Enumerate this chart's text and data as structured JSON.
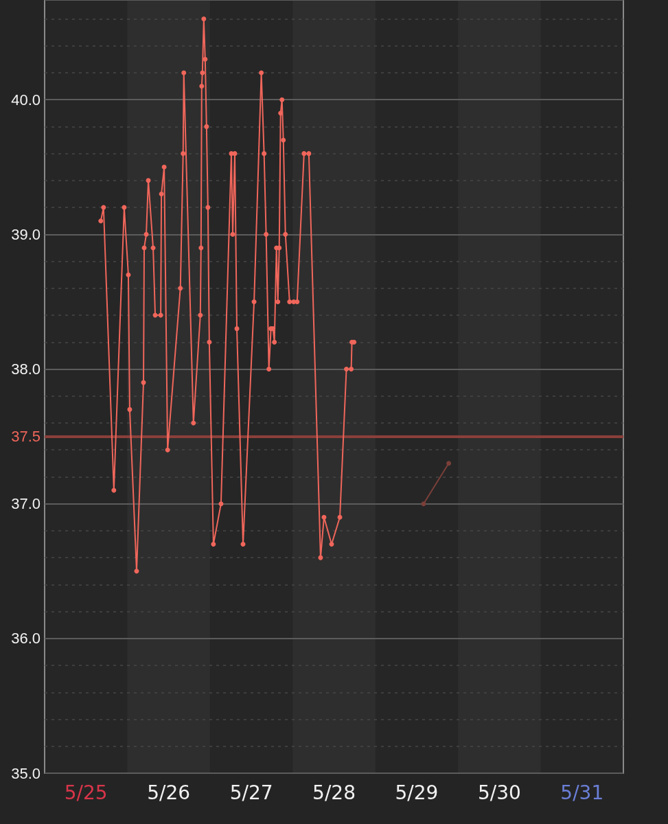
{
  "chart_data": {
    "type": "line",
    "x": [
      "--05-25T16:18",
      "--05-25T17:06",
      "--05-25T20:06",
      "--05-25T23:06",
      "--05-26T00:18",
      "--05-26T00:42",
      "--05-26T02:42",
      "--05-26T04:42",
      "--05-26T04:54",
      "--05-26T05:30",
      "--05-26T06:06",
      "--05-26T07:30",
      "--05-26T08:06",
      "--05-26T09:42",
      "--05-26T09:54",
      "--05-26T10:42",
      "--05-26T11:42",
      "--05-26T15:24",
      "--05-26T16:12",
      "--05-26T16:24",
      "--05-26T19:12",
      "--05-26T21:12",
      "--05-26T21:24",
      "--05-26T21:36",
      "--05-26T21:48",
      "--05-26T22:12",
      "--05-26T22:36",
      "--05-26T23:00",
      "--05-26T23:24",
      "--05-26T23:48",
      "--05-27T01:00",
      "--05-27T03:12",
      "--05-27T06:12",
      "--05-27T06:36",
      "--05-27T07:12",
      "--05-27T07:48",
      "--05-27T09:36",
      "--05-27T12:48",
      "--05-27T14:54",
      "--05-27T15:42",
      "--05-27T16:18",
      "--05-27T17:06",
      "--05-27T17:42",
      "--05-27T18:18",
      "--05-27T18:42",
      "--05-27T19:18",
      "--05-27T19:42",
      "--05-27T20:06",
      "--05-27T20:30",
      "--05-27T20:54",
      "--05-27T21:18",
      "--05-27T21:54",
      "--05-27T23:06",
      "--05-28T00:18",
      "--05-28T01:18",
      "--05-28T03:18",
      "--05-28T04:42",
      "--05-28T08:06",
      "--05-28T09:06",
      "--05-28T11:18",
      "--05-28T13:42",
      "--05-28T15:36",
      "--05-28T17:00",
      "--05-28T17:12",
      "--05-28T17:48"
    ],
    "series": [
      {
        "color": "#f0665b",
        "values": [
          39.1,
          39.2,
          37.1,
          39.2,
          38.7,
          37.7,
          36.5,
          37.9,
          38.9,
          39.0,
          39.4,
          38.9,
          38.4,
          38.4,
          39.3,
          39.5,
          37.4,
          38.6,
          39.6,
          40.2,
          37.6,
          38.4,
          38.9,
          40.1,
          40.2,
          40.6,
          40.3,
          39.8,
          39.2,
          38.2,
          36.7,
          37.0,
          39.6,
          39.0,
          39.6,
          38.3,
          36.7,
          38.5,
          40.2,
          39.6,
          39.0,
          38.0,
          38.3,
          38.3,
          38.2,
          38.9,
          38.5,
          38.9,
          39.9,
          40.0,
          39.7,
          39.0,
          38.5,
          38.5,
          38.5,
          39.6,
          39.6,
          36.6,
          36.9,
          36.7,
          36.9,
          38.0,
          38.0,
          38.2,
          38.2
        ]
      },
      {
        "color": "#7a3f39",
        "x": [
          "--05-29T14:00",
          "--05-29T21:18"
        ],
        "values": [
          37.0,
          37.3
        ]
      }
    ],
    "xlim": [
      "--05-25T00:00",
      "--06-01T00:00"
    ],
    "xticks": [
      {
        "value": "--05-25T12:00",
        "label": "5/25"
      },
      {
        "value": "--05-26T12:00",
        "label": "5/26"
      },
      {
        "value": "--05-27T12:00",
        "label": "5/27"
      },
      {
        "value": "--05-28T12:00",
        "label": "5/28"
      },
      {
        "value": "--05-29T12:00",
        "label": "5/29"
      },
      {
        "value": "--05-30T12:00",
        "label": "5/30"
      },
      {
        "value": "--05-31T12:00",
        "label": "5/31"
      }
    ],
    "ylim": [
      35,
      40.74
    ],
    "yticks": [
      {
        "value": 35,
        "label": "35.0"
      },
      {
        "value": 36,
        "label": "36.0"
      },
      {
        "value": 37,
        "label": "37.0"
      },
      {
        "value": 38,
        "label": "38.0"
      },
      {
        "value": 39,
        "label": "39.0"
      },
      {
        "value": 40,
        "label": "40.0"
      }
    ],
    "ref_lines": [
      {
        "axis": "y",
        "value": 37.5,
        "label": "37.5",
        "color": "#8a3f3a"
      }
    ],
    "bands": [
      {
        "axis": "x",
        "from": "--05-26T00:00",
        "to": "--05-27T00:00",
        "color": "#2e2e2e"
      },
      {
        "axis": "x",
        "from": "--05-28T00:00",
        "to": "--05-29T00:00",
        "color": "#2e2e2e"
      },
      {
        "axis": "x",
        "from": "--05-30T00:00",
        "to": "--05-31T00:00",
        "color": "#2e2e2e"
      }
    ],
    "grid": "y",
    "marker": "circle",
    "line_style": "solid"
  }
}
